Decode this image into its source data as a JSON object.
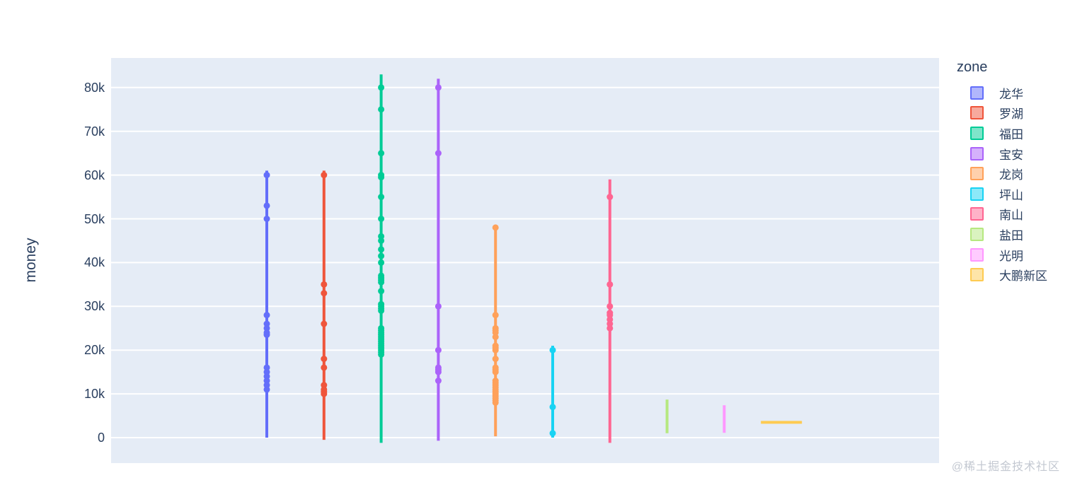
{
  "axes": {
    "y_title": "money",
    "y_ticks": [
      {
        "value": 0,
        "label": "0"
      },
      {
        "value": 10000,
        "label": "10k"
      },
      {
        "value": 20000,
        "label": "20k"
      },
      {
        "value": 30000,
        "label": "30k"
      },
      {
        "value": 40000,
        "label": "40k"
      },
      {
        "value": 50000,
        "label": "50k"
      },
      {
        "value": 60000,
        "label": "60k"
      },
      {
        "value": 70000,
        "label": "70k"
      },
      {
        "value": 80000,
        "label": "80k"
      }
    ],
    "x_ticks": []
  },
  "legend": {
    "title": "zone",
    "items": [
      {
        "label": "龙华",
        "color": "#636EFA"
      },
      {
        "label": "罗湖",
        "color": "#EF553B"
      },
      {
        "label": "福田",
        "color": "#00CC96"
      },
      {
        "label": "宝安",
        "color": "#AB63FA"
      },
      {
        "label": "龙岗",
        "color": "#FFA15A"
      },
      {
        "label": "坪山",
        "color": "#19D3F3"
      },
      {
        "label": "南山",
        "color": "#FF6692"
      },
      {
        "label": "盐田",
        "color": "#B6E880"
      },
      {
        "label": "光明",
        "color": "#FF97FF"
      },
      {
        "label": "大鹏新区",
        "color": "#FECB52"
      }
    ]
  },
  "watermark": "@稀土掘金技术社区",
  "colors": {
    "plot_background": "#E5ECF6",
    "gridline": "#FFFFFF",
    "text": "#2A3F5F",
    "watermark": "#C3C8D1"
  },
  "chart_data": {
    "type": "line",
    "title": "",
    "xlabel": "",
    "ylabel": "money",
    "legend_title": "zone",
    "ylim": [
      -5800,
      86800
    ],
    "grid": true,
    "legend_position": "right",
    "categories": [
      "龙华",
      "罗湖",
      "福田",
      "宝安",
      "龙岗",
      "坪山",
      "南山",
      "盐田",
      "光明",
      "大鹏新区"
    ],
    "series": [
      {
        "name": "龙华",
        "color": "#636EFA",
        "orientation": "v",
        "line_range": [
          0,
          61000
        ],
        "points": [
          60000,
          53000,
          50000,
          28000,
          26000,
          25000,
          24000,
          23500,
          16000,
          15000,
          14000,
          13000,
          12000,
          11000
        ]
      },
      {
        "name": "罗湖",
        "color": "#EF553B",
        "orientation": "v",
        "line_range": [
          -500,
          61000
        ],
        "points": [
          60000,
          35000,
          33000,
          26000,
          18000,
          16000,
          12000,
          11000,
          10500,
          10000
        ]
      },
      {
        "name": "福田",
        "color": "#00CC96",
        "orientation": "v",
        "line_range": [
          -1200,
          83000
        ],
        "points": [
          80000,
          75000,
          65000,
          60000,
          59500,
          55000,
          50000,
          46000,
          45000,
          43000,
          41500,
          40000,
          37000,
          36500,
          36000,
          35500,
          33500,
          30500,
          30000,
          29500,
          29000,
          25000,
          24500,
          24000,
          23500,
          23000,
          22500,
          22000,
          21500,
          21000,
          20500,
          20000,
          19500,
          19000
        ]
      },
      {
        "name": "宝安",
        "color": "#AB63FA",
        "orientation": "v",
        "line_range": [
          -700,
          82000
        ],
        "points": [
          80000,
          65000,
          30000,
          20000,
          16000,
          15500,
          15000,
          13000
        ]
      },
      {
        "name": "龙岗",
        "color": "#FFA15A",
        "orientation": "v",
        "line_range": [
          300,
          48600
        ],
        "points": [
          48000,
          28000,
          25000,
          24500,
          24000,
          23000,
          21000,
          20500,
          20000,
          18000,
          16000,
          15500,
          15000,
          13000,
          12500,
          12000,
          11500,
          11000,
          10500,
          10000,
          9500,
          9000,
          8500,
          8000
        ]
      },
      {
        "name": "坪山",
        "color": "#19D3F3",
        "orientation": "v",
        "line_range": [
          0,
          21000
        ],
        "points": [
          20000,
          7000,
          1000
        ]
      },
      {
        "name": "南山",
        "color": "#FF6692",
        "orientation": "v",
        "line_range": [
          -1200,
          59000
        ],
        "points": [
          55000,
          35000,
          30000,
          28500,
          28000,
          27000,
          26000,
          25000
        ]
      },
      {
        "name": "盐田",
        "color": "#B6E880",
        "orientation": "v",
        "line_range": [
          1000,
          8700
        ],
        "points": []
      },
      {
        "name": "光明",
        "color": "#FF97FF",
        "orientation": "v",
        "line_range": [
          1100,
          7400
        ],
        "points": []
      },
      {
        "name": "大鹏新区",
        "color": "#FECB52",
        "orientation": "h",
        "value": 3500,
        "points": []
      }
    ]
  }
}
